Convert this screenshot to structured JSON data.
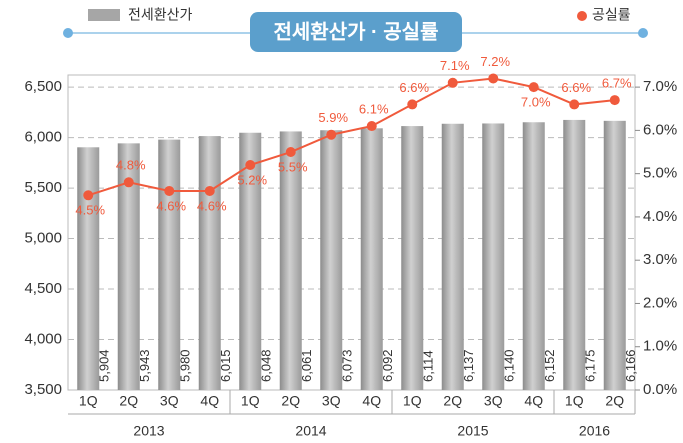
{
  "chart_data": {
    "type": "bar_line",
    "title": "전세환산가 · 공실률",
    "categories": [
      "1Q",
      "2Q",
      "3Q",
      "4Q",
      "1Q",
      "2Q",
      "3Q",
      "4Q",
      "1Q",
      "2Q",
      "3Q",
      "4Q",
      "1Q",
      "2Q"
    ],
    "years": [
      "2013",
      "2014",
      "2015",
      "2016"
    ],
    "series": [
      {
        "name": "전세환산가",
        "color": "#a6a6a6",
        "type": "bar",
        "values": [
          5904,
          5943,
          5980,
          6015,
          6048,
          6061,
          6073,
          6092,
          6114,
          6137,
          6140,
          6152,
          6175,
          6166
        ],
        "value_labels": [
          "5,904",
          "5,943",
          "5,980",
          "6,015",
          "6,048",
          "6,061",
          "6,073",
          "6,092",
          "6,114",
          "6,137",
          "6,140",
          "6,152",
          "6,175",
          "6,166"
        ]
      },
      {
        "name": "공실률",
        "color": "#f05a3c",
        "type": "line",
        "axis": "y2",
        "values": [
          4.5,
          4.8,
          4.6,
          4.6,
          5.2,
          5.5,
          5.9,
          6.1,
          6.6,
          7.1,
          7.2,
          7.0,
          6.6,
          6.7
        ],
        "value_labels": [
          "4.5%",
          "4.8%",
          "4.6%",
          "4.6%",
          "5.2%",
          "5.5%",
          "5.9%",
          "6.1%",
          "6.6%",
          "7.1%",
          "7.2%",
          "7.0%",
          "6.6%",
          "6.7%"
        ]
      }
    ],
    "ylim": [
      3500,
      6620
    ],
    "yticks": [
      {
        "value": 3500,
        "label": "3,500"
      },
      {
        "value": 4000,
        "label": "4,000"
      },
      {
        "value": 4500,
        "label": "4,500"
      },
      {
        "value": 5000,
        "label": "5,000"
      },
      {
        "value": 5500,
        "label": "5,500"
      },
      {
        "value": 6000,
        "label": "6,000"
      },
      {
        "value": 6500,
        "label": "6,500"
      }
    ],
    "y2lim": [
      0,
      7.28
    ],
    "y2ticks": [
      {
        "value": 0,
        "label": "0.0%"
      },
      {
        "value": 1,
        "label": "1.0%"
      },
      {
        "value": 2,
        "label": "2.0%"
      },
      {
        "value": 3,
        "label": "3.0%"
      },
      {
        "value": 4,
        "label": "4.0%"
      },
      {
        "value": 5,
        "label": "5.0%"
      },
      {
        "value": 6,
        "label": "6.0%"
      },
      {
        "value": 7,
        "label": "7.0%"
      }
    ],
    "grid": true
  }
}
